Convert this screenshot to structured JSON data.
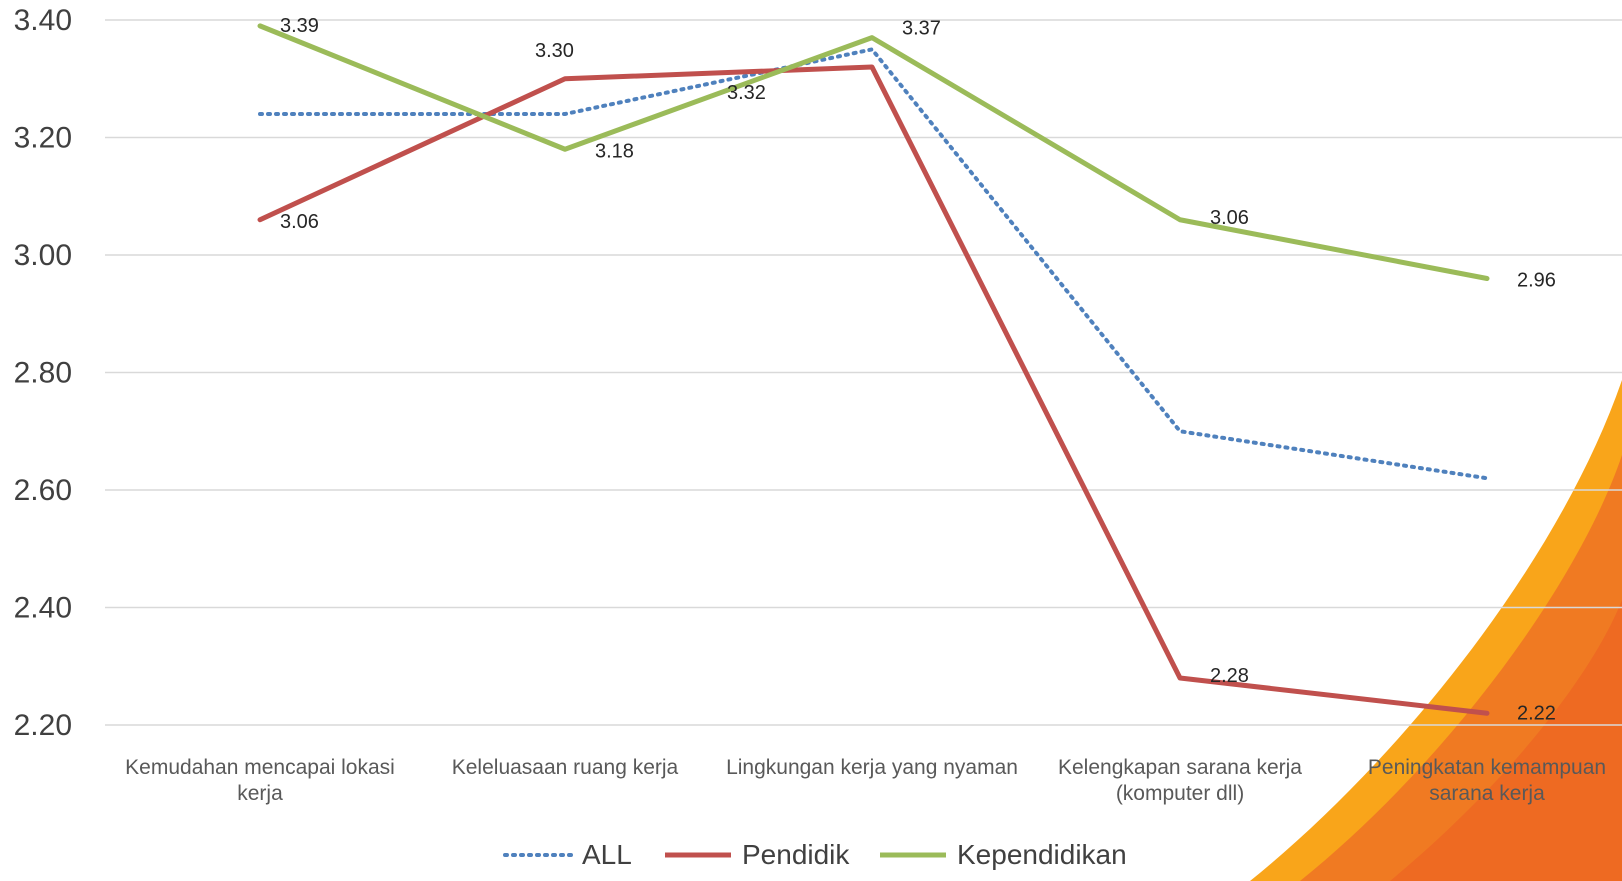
{
  "chart_data": {
    "type": "line",
    "categories": [
      [
        "Kemudahan mencapai lokasi",
        "kerja"
      ],
      [
        "Keleluasaan ruang kerja"
      ],
      [
        "Lingkungan kerja yang nyaman"
      ],
      [
        "Kelengkapan sarana kerja",
        "(komputer dll)"
      ],
      [
        "Peningkatan kemampuan",
        "sarana kerja"
      ]
    ],
    "series": [
      {
        "name": "ALL",
        "values": [
          3.24,
          3.24,
          3.35,
          2.7,
          2.62
        ],
        "color": "#4f81bd",
        "style": "dotted",
        "labels": []
      },
      {
        "name": "Pendidik",
        "values": [
          3.06,
          3.3,
          3.32,
          2.28,
          2.22
        ],
        "color": "#c0504d",
        "style": "solid",
        "labels": [
          "3.06",
          "3.30",
          "3.32",
          "2.28",
          "2.22"
        ]
      },
      {
        "name": "Kependidikan",
        "values": [
          3.39,
          3.18,
          3.37,
          3.06,
          2.96
        ],
        "color": "#9bbb59",
        "style": "solid",
        "labels": [
          "3.39",
          "3.18",
          "3.37",
          "3.06",
          "2.96"
        ]
      }
    ],
    "yticks": [
      "2.20",
      "2.40",
      "2.60",
      "2.80",
      "3.00",
      "3.20",
      "3.40"
    ],
    "ylim": [
      2.2,
      3.4
    ],
    "grid": true,
    "legend": "bottom",
    "decoration": {
      "colors": [
        "#f9a51a",
        "#f07a22",
        "#ee6a22"
      ]
    }
  }
}
